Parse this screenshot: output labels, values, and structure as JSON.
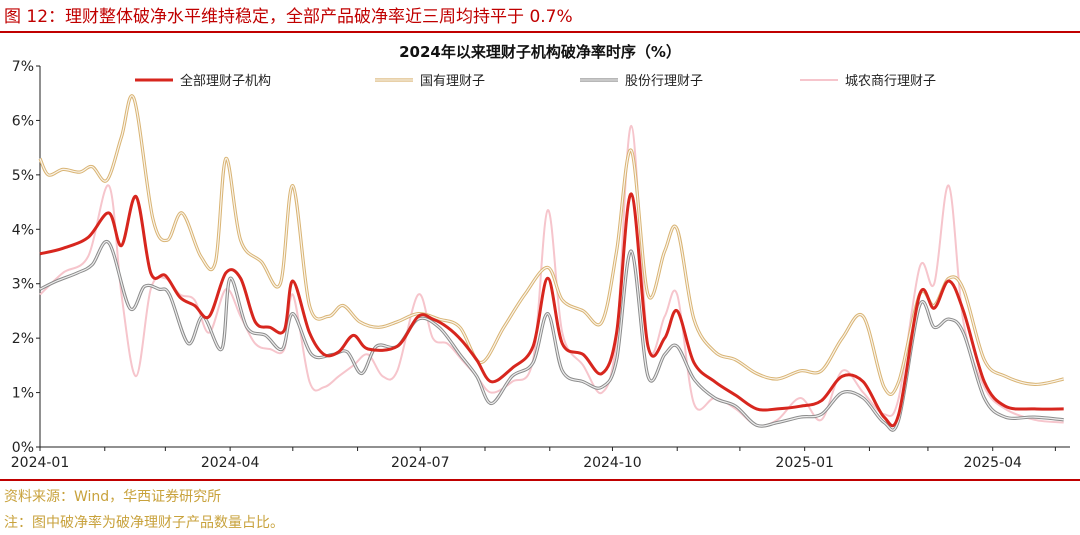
{
  "figure": {
    "title": "图 12：理财整体破净水平维持稳定，全部产品破净率近三周均持平于 0.7%",
    "source": "资料来源：Wind，华西证券研究所",
    "note": "注：图中破净率为破净理财子产品数量占比。"
  },
  "chart_data": {
    "type": "line",
    "title": "2024年以来理财子机构破净率时序（%）",
    "x_ticks": [
      "2024-01",
      "2024-04",
      "2024-07",
      "2024-10",
      "2025-01",
      "2025-04"
    ],
    "y_ticks": [
      "0%",
      "1%",
      "2%",
      "3%",
      "4%",
      "5%",
      "6%",
      "7%"
    ],
    "ylim": [
      0,
      7
    ],
    "xlim": [
      "2024-01-01",
      "2025-05-08"
    ],
    "grid": false,
    "legend": "top",
    "series": [
      {
        "name": "全部理财子机构",
        "color": "#d7261e",
        "points": [
          [
            "2024-01-01",
            3.55
          ],
          [
            "2024-01-12",
            3.65
          ],
          [
            "2024-01-24",
            3.85
          ],
          [
            "2024-02-03",
            4.3
          ],
          [
            "2024-02-09",
            3.7
          ],
          [
            "2024-02-16",
            4.6
          ],
          [
            "2024-02-23",
            3.2
          ],
          [
            "2024-03-01",
            3.15
          ],
          [
            "2024-03-08",
            2.75
          ],
          [
            "2024-03-15",
            2.6
          ],
          [
            "2024-03-22",
            2.4
          ],
          [
            "2024-03-30",
            3.2
          ],
          [
            "2024-04-06",
            3.1
          ],
          [
            "2024-04-13",
            2.3
          ],
          [
            "2024-04-20",
            2.2
          ],
          [
            "2024-04-27",
            2.15
          ],
          [
            "2024-05-01",
            3.05
          ],
          [
            "2024-05-09",
            2.1
          ],
          [
            "2024-05-16",
            1.7
          ],
          [
            "2024-05-23",
            1.75
          ],
          [
            "2024-05-30",
            2.05
          ],
          [
            "2024-06-06",
            1.8
          ],
          [
            "2024-06-20",
            1.85
          ],
          [
            "2024-06-30",
            2.4
          ],
          [
            "2024-07-07",
            2.35
          ],
          [
            "2024-07-14",
            2.2
          ],
          [
            "2024-07-21",
            1.95
          ],
          [
            "2024-07-28",
            1.6
          ],
          [
            "2024-08-04",
            1.2
          ],
          [
            "2024-08-14",
            1.45
          ],
          [
            "2024-08-24",
            1.85
          ],
          [
            "2024-08-31",
            3.1
          ],
          [
            "2024-09-07",
            1.9
          ],
          [
            "2024-09-17",
            1.7
          ],
          [
            "2024-09-26",
            1.35
          ],
          [
            "2024-10-03",
            2.1
          ],
          [
            "2024-10-10",
            4.65
          ],
          [
            "2024-10-18",
            1.85
          ],
          [
            "2024-10-26",
            2.0
          ],
          [
            "2024-11-01",
            2.5
          ],
          [
            "2024-11-09",
            1.55
          ],
          [
            "2024-11-19",
            1.2
          ],
          [
            "2024-11-29",
            0.95
          ],
          [
            "2024-12-09",
            0.7
          ],
          [
            "2024-12-19",
            0.7
          ],
          [
            "2024-12-30",
            0.75
          ],
          [
            "2025-01-09",
            0.85
          ],
          [
            "2025-01-19",
            1.3
          ],
          [
            "2025-01-29",
            1.2
          ],
          [
            "2025-02-08",
            0.55
          ],
          [
            "2025-02-15",
            0.6
          ],
          [
            "2025-02-25",
            2.8
          ],
          [
            "2025-03-04",
            2.55
          ],
          [
            "2025-03-11",
            3.05
          ],
          [
            "2025-03-18",
            2.5
          ],
          [
            "2025-03-28",
            1.2
          ],
          [
            "2025-04-07",
            0.75
          ],
          [
            "2025-04-21",
            0.7
          ],
          [
            "2025-05-05",
            0.7
          ]
        ]
      },
      {
        "name": "国有理财子",
        "color": "#d9b474",
        "points": [
          [
            "2024-01-01",
            5.3
          ],
          [
            "2024-01-05",
            5.0
          ],
          [
            "2024-01-12",
            5.1
          ],
          [
            "2024-01-20",
            5.05
          ],
          [
            "2024-01-26",
            5.15
          ],
          [
            "2024-02-02",
            4.9
          ],
          [
            "2024-02-09",
            5.7
          ],
          [
            "2024-02-15",
            6.4
          ],
          [
            "2024-02-24",
            4.2
          ],
          [
            "2024-03-02",
            3.8
          ],
          [
            "2024-03-09",
            4.3
          ],
          [
            "2024-03-18",
            3.5
          ],
          [
            "2024-03-25",
            3.4
          ],
          [
            "2024-03-30",
            5.3
          ],
          [
            "2024-04-06",
            3.8
          ],
          [
            "2024-04-16",
            3.4
          ],
          [
            "2024-04-25",
            3.0
          ],
          [
            "2024-05-01",
            4.8
          ],
          [
            "2024-05-09",
            2.6
          ],
          [
            "2024-05-18",
            2.4
          ],
          [
            "2024-05-25",
            2.6
          ],
          [
            "2024-06-02",
            2.3
          ],
          [
            "2024-06-11",
            2.2
          ],
          [
            "2024-06-20",
            2.3
          ],
          [
            "2024-06-30",
            2.45
          ],
          [
            "2024-07-10",
            2.35
          ],
          [
            "2024-07-20",
            2.2
          ],
          [
            "2024-07-30",
            1.55
          ],
          [
            "2024-08-10",
            2.2
          ],
          [
            "2024-08-20",
            2.8
          ],
          [
            "2024-08-31",
            3.3
          ],
          [
            "2024-09-07",
            2.7
          ],
          [
            "2024-09-17",
            2.5
          ],
          [
            "2024-09-26",
            2.3
          ],
          [
            "2024-10-03",
            3.6
          ],
          [
            "2024-10-10",
            5.45
          ],
          [
            "2024-10-18",
            2.8
          ],
          [
            "2024-10-26",
            3.6
          ],
          [
            "2024-11-01",
            4.0
          ],
          [
            "2024-11-09",
            2.35
          ],
          [
            "2024-11-19",
            1.75
          ],
          [
            "2024-11-29",
            1.6
          ],
          [
            "2024-12-09",
            1.35
          ],
          [
            "2024-12-19",
            1.25
          ],
          [
            "2024-12-30",
            1.4
          ],
          [
            "2025-01-09",
            1.4
          ],
          [
            "2025-01-19",
            2.0
          ],
          [
            "2025-01-29",
            2.4
          ],
          [
            "2025-02-08",
            1.1
          ],
          [
            "2025-02-15",
            1.2
          ],
          [
            "2025-02-25",
            2.8
          ],
          [
            "2025-03-04",
            2.6
          ],
          [
            "2025-03-11",
            3.1
          ],
          [
            "2025-03-18",
            2.9
          ],
          [
            "2025-03-28",
            1.6
          ],
          [
            "2025-04-07",
            1.3
          ],
          [
            "2025-04-21",
            1.15
          ],
          [
            "2025-05-05",
            1.25
          ]
        ]
      },
      {
        "name": "股份行理财子",
        "color": "#8c8c8c",
        "points": [
          [
            "2024-01-01",
            2.9
          ],
          [
            "2024-01-09",
            3.05
          ],
          [
            "2024-01-19",
            3.2
          ],
          [
            "2024-01-26",
            3.35
          ],
          [
            "2024-02-03",
            3.75
          ],
          [
            "2024-02-13",
            2.55
          ],
          [
            "2024-02-20",
            2.95
          ],
          [
            "2024-02-27",
            2.9
          ],
          [
            "2024-03-03",
            2.8
          ],
          [
            "2024-03-12",
            1.9
          ],
          [
            "2024-03-19",
            2.4
          ],
          [
            "2024-03-28",
            1.8
          ],
          [
            "2024-04-01",
            3.1
          ],
          [
            "2024-04-09",
            2.2
          ],
          [
            "2024-04-18",
            2.05
          ],
          [
            "2024-04-26",
            1.8
          ],
          [
            "2024-05-01",
            2.45
          ],
          [
            "2024-05-10",
            1.7
          ],
          [
            "2024-05-20",
            1.7
          ],
          [
            "2024-05-27",
            1.75
          ],
          [
            "2024-06-03",
            1.35
          ],
          [
            "2024-06-10",
            1.85
          ],
          [
            "2024-06-20",
            1.85
          ],
          [
            "2024-06-30",
            2.35
          ],
          [
            "2024-07-10",
            2.2
          ],
          [
            "2024-07-20",
            1.7
          ],
          [
            "2024-07-28",
            1.3
          ],
          [
            "2024-08-04",
            0.8
          ],
          [
            "2024-08-14",
            1.3
          ],
          [
            "2024-08-24",
            1.55
          ],
          [
            "2024-08-31",
            2.45
          ],
          [
            "2024-09-07",
            1.4
          ],
          [
            "2024-09-17",
            1.2
          ],
          [
            "2024-09-26",
            1.1
          ],
          [
            "2024-10-03",
            1.6
          ],
          [
            "2024-10-10",
            3.6
          ],
          [
            "2024-10-18",
            1.3
          ],
          [
            "2024-10-26",
            1.7
          ],
          [
            "2024-11-01",
            1.85
          ],
          [
            "2024-11-09",
            1.25
          ],
          [
            "2024-11-19",
            0.9
          ],
          [
            "2024-11-29",
            0.75
          ],
          [
            "2024-12-09",
            0.4
          ],
          [
            "2024-12-19",
            0.45
          ],
          [
            "2024-12-30",
            0.55
          ],
          [
            "2025-01-09",
            0.6
          ],
          [
            "2025-01-19",
            1.0
          ],
          [
            "2025-01-29",
            0.9
          ],
          [
            "2025-02-08",
            0.45
          ],
          [
            "2025-02-15",
            0.5
          ],
          [
            "2025-02-25",
            2.6
          ],
          [
            "2025-03-04",
            2.2
          ],
          [
            "2025-03-11",
            2.35
          ],
          [
            "2025-03-18",
            2.1
          ],
          [
            "2025-03-28",
            0.9
          ],
          [
            "2025-04-07",
            0.55
          ],
          [
            "2025-04-21",
            0.55
          ],
          [
            "2025-05-05",
            0.5
          ]
        ]
      },
      {
        "name": "城农商行理财子",
        "color": "#f6c5cc",
        "points": [
          [
            "2024-01-01",
            2.8
          ],
          [
            "2024-01-12",
            3.2
          ],
          [
            "2024-01-24",
            3.5
          ],
          [
            "2024-02-03",
            4.8
          ],
          [
            "2024-02-09",
            2.8
          ],
          [
            "2024-02-16",
            1.3
          ],
          [
            "2024-02-23",
            2.9
          ],
          [
            "2024-03-01",
            3.1
          ],
          [
            "2024-03-08",
            2.8
          ],
          [
            "2024-03-15",
            2.7
          ],
          [
            "2024-03-22",
            2.1
          ],
          [
            "2024-03-30",
            2.9
          ],
          [
            "2024-04-06",
            2.4
          ],
          [
            "2024-04-13",
            1.9
          ],
          [
            "2024-04-20",
            1.8
          ],
          [
            "2024-04-27",
            1.8
          ],
          [
            "2024-05-01",
            2.8
          ],
          [
            "2024-05-09",
            1.2
          ],
          [
            "2024-05-16",
            1.1
          ],
          [
            "2024-05-23",
            1.3
          ],
          [
            "2024-05-30",
            1.5
          ],
          [
            "2024-06-06",
            1.7
          ],
          [
            "2024-06-13",
            1.3
          ],
          [
            "2024-06-20",
            1.4
          ],
          [
            "2024-06-30",
            2.8
          ],
          [
            "2024-07-07",
            2.0
          ],
          [
            "2024-07-14",
            1.9
          ],
          [
            "2024-07-21",
            1.6
          ],
          [
            "2024-07-28",
            1.3
          ],
          [
            "2024-08-04",
            1.0
          ],
          [
            "2024-08-14",
            1.2
          ],
          [
            "2024-08-24",
            1.6
          ],
          [
            "2024-08-31",
            4.35
          ],
          [
            "2024-09-07",
            2.1
          ],
          [
            "2024-09-17",
            1.5
          ],
          [
            "2024-09-26",
            1.0
          ],
          [
            "2024-10-03",
            2.0
          ],
          [
            "2024-10-10",
            5.9
          ],
          [
            "2024-10-18",
            1.9
          ],
          [
            "2024-10-26",
            2.4
          ],
          [
            "2024-11-01",
            2.8
          ],
          [
            "2024-11-09",
            0.8
          ],
          [
            "2024-11-19",
            0.9
          ],
          [
            "2024-11-29",
            0.7
          ],
          [
            "2024-12-09",
            0.4
          ],
          [
            "2024-12-19",
            0.5
          ],
          [
            "2024-12-30",
            0.9
          ],
          [
            "2025-01-09",
            0.5
          ],
          [
            "2025-01-19",
            1.4
          ],
          [
            "2025-01-29",
            1.0
          ],
          [
            "2025-02-08",
            0.6
          ],
          [
            "2025-02-15",
            0.9
          ],
          [
            "2025-02-25",
            3.3
          ],
          [
            "2025-03-04",
            3.0
          ],
          [
            "2025-03-11",
            4.8
          ],
          [
            "2025-03-18",
            2.3
          ],
          [
            "2025-03-28",
            1.1
          ],
          [
            "2025-04-07",
            0.7
          ],
          [
            "2025-04-21",
            0.5
          ],
          [
            "2025-05-05",
            0.45
          ]
        ]
      }
    ]
  }
}
